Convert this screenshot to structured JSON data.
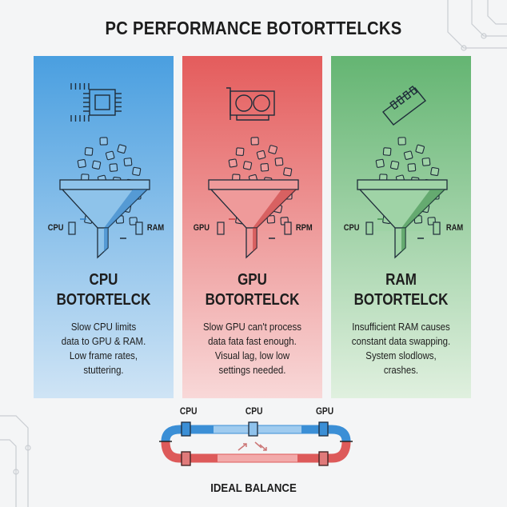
{
  "title": "PC PERFORMANCE BOTORTTELCKS",
  "panels": [
    {
      "icon": "cpu-chip-icon",
      "color": "#2f7fc4",
      "light": "#8ec3ea",
      "title_line1": "CPU",
      "title_line2": "BOTORTELCK",
      "left_label": "CPU",
      "right_label": "RAM",
      "description": [
        "Slow CPU limits",
        "data to GPU & RAM.",
        "Low frame rates,",
        "stuttering."
      ]
    },
    {
      "icon": "graphics-card-icon",
      "color": "#c83c3c",
      "light": "#ef9a9a",
      "title_line1": "GPU",
      "title_line2": "BOTORTELCK",
      "left_label": "GPU",
      "right_label": "RPM",
      "description": [
        "Slow GPU can't process",
        "data fata fast enough.",
        "Visual lag, low low",
        "settings needed."
      ]
    },
    {
      "icon": "ram-stick-icon",
      "color": "#3f8f4d",
      "light": "#9fd3a6",
      "title_line1": "RAM",
      "title_line2": "BOTORTELCK",
      "left_label": "CPU",
      "right_label": "RAM",
      "description": [
        "Insufficient RAM causes",
        "constant data swapping.",
        "System slodlows,",
        "crashes."
      ]
    }
  ],
  "balance": {
    "labels": [
      "CPU",
      "CPU",
      "GPU"
    ],
    "title": "IDEAL BALANCE",
    "top_color": "#3b8fd6",
    "bottom_color": "#dd5a5a"
  }
}
